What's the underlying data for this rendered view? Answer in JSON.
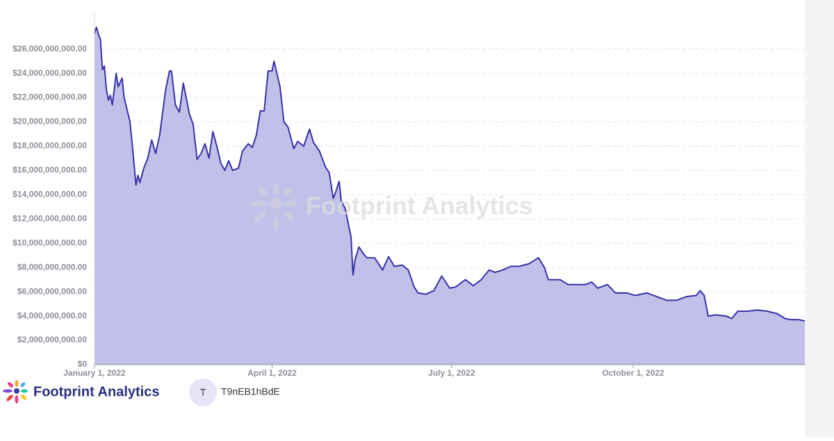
{
  "chart_data": {
    "type": "area",
    "color": "#3731a8",
    "fill": "#c2c0e8",
    "grid": true,
    "x": [
      "2022-01-01",
      "2022-01-02",
      "2022-01-03",
      "2022-01-04",
      "2022-01-05",
      "2022-01-06",
      "2022-01-07",
      "2022-01-08",
      "2022-01-09",
      "2022-01-10",
      "2022-01-12",
      "2022-01-13",
      "2022-01-15",
      "2022-01-16",
      "2022-01-19",
      "2022-01-21",
      "2022-01-22",
      "2022-01-23",
      "2022-01-24",
      "2022-01-26",
      "2022-01-28",
      "2022-01-30",
      "2022-02-01",
      "2022-02-03",
      "2022-02-06",
      "2022-02-08",
      "2022-02-09",
      "2022-02-11",
      "2022-02-13",
      "2022-02-15",
      "2022-02-18",
      "2022-02-20",
      "2022-02-22",
      "2022-02-24",
      "2022-02-26",
      "2022-02-28",
      "2022-03-02",
      "2022-03-04",
      "2022-03-06",
      "2022-03-08",
      "2022-03-10",
      "2022-03-12",
      "2022-03-15",
      "2022-03-17",
      "2022-03-20",
      "2022-03-22",
      "2022-03-24",
      "2022-03-26",
      "2022-03-28",
      "2022-03-30",
      "2022-04-01",
      "2022-04-02",
      "2022-04-05",
      "2022-04-07",
      "2022-04-09",
      "2022-04-12",
      "2022-04-14",
      "2022-04-17",
      "2022-04-20",
      "2022-04-22",
      "2022-04-25",
      "2022-04-28",
      "2022-04-30",
      "2022-05-02",
      "2022-05-03",
      "2022-05-05",
      "2022-05-06",
      "2022-05-08",
      "2022-05-11",
      "2022-05-12",
      "2022-05-13",
      "2022-05-15",
      "2022-05-17",
      "2022-05-19",
      "2022-05-23",
      "2022-05-27",
      "2022-05-30",
      "2022-06-02",
      "2022-06-06",
      "2022-06-09",
      "2022-06-12",
      "2022-06-14",
      "2022-06-18",
      "2022-06-22",
      "2022-06-26",
      "2022-06-30",
      "2022-07-03",
      "2022-07-08",
      "2022-07-12",
      "2022-07-16",
      "2022-07-20",
      "2022-07-23",
      "2022-07-27",
      "2022-07-31",
      "2022-08-04",
      "2022-08-09",
      "2022-08-14",
      "2022-08-17",
      "2022-08-19",
      "2022-08-25",
      "2022-08-29",
      "2022-09-02",
      "2022-09-07",
      "2022-09-10",
      "2022-09-13",
      "2022-09-18",
      "2022-09-22",
      "2022-09-28",
      "2022-10-02",
      "2022-10-08",
      "2022-10-13",
      "2022-10-18",
      "2022-10-23",
      "2022-10-28",
      "2022-11-02",
      "2022-11-04",
      "2022-11-06",
      "2022-11-08",
      "2022-11-12",
      "2022-11-17",
      "2022-11-20",
      "2022-11-23",
      "2022-11-28",
      "2022-12-03",
      "2022-12-08",
      "2022-12-13",
      "2022-12-17",
      "2022-12-20",
      "2022-12-24",
      "2022-12-27"
    ],
    "values": [
      27300000000,
      27800000000,
      27200000000,
      26800000000,
      24300000000,
      24600000000,
      22700000000,
      21800000000,
      22200000000,
      21400000000,
      24000000000,
      22900000000,
      23600000000,
      22000000000,
      20000000000,
      16600000000,
      14800000000,
      15600000000,
      15000000000,
      16200000000,
      17000000000,
      18500000000,
      17400000000,
      18900000000,
      22600000000,
      24200000000,
      24200000000,
      21400000000,
      20800000000,
      23200000000,
      20700000000,
      19800000000,
      16900000000,
      17400000000,
      18200000000,
      17000000000,
      19200000000,
      18000000000,
      16600000000,
      16000000000,
      16800000000,
      16000000000,
      16200000000,
      17600000000,
      18200000000,
      17900000000,
      18900000000,
      20900000000,
      20900000000,
      24200000000,
      24200000000,
      25000000000,
      22900000000,
      20000000000,
      19600000000,
      17800000000,
      18400000000,
      18000000000,
      19400000000,
      18300000000,
      17600000000,
      16300000000,
      15800000000,
      13700000000,
      14100000000,
      15100000000,
      13500000000,
      12900000000,
      10500000000,
      7400000000,
      8600000000,
      9700000000,
      9200000000,
      8800000000,
      8800000000,
      7800000000,
      8900000000,
      8100000000,
      8200000000,
      7800000000,
      6400000000,
      5900000000,
      5800000000,
      6100000000,
      7300000000,
      6300000000,
      6400000000,
      7000000000,
      6500000000,
      7000000000,
      7800000000,
      7600000000,
      7800000000,
      8100000000,
      8100000000,
      8300000000,
      8800000000,
      8000000000,
      7000000000,
      7000000000,
      6600000000,
      6600000000,
      6600000000,
      6800000000,
      6300000000,
      6600000000,
      5900000000,
      5900000000,
      5700000000,
      5900000000,
      5600000000,
      5300000000,
      5300000000,
      5600000000,
      5700000000,
      6100000000,
      5700000000,
      4000000000,
      4100000000,
      4000000000,
      3800000000,
      4400000000,
      4400000000,
      4500000000,
      4400000000,
      4200000000,
      3800000000,
      3700000000,
      3700000000,
      3600000000
    ],
    "xlim": [
      "2022-01-01",
      "2022-12-27"
    ],
    "xticks": [
      {
        "value": "2022-01-01",
        "label": "January 1, 2022"
      },
      {
        "value": "2022-04-01",
        "label": "April 1, 2022"
      },
      {
        "value": "2022-07-01",
        "label": "July 1, 2022"
      },
      {
        "value": "2022-10-01",
        "label": "October 1, 2022"
      }
    ],
    "ylim": [
      0,
      28900000000
    ],
    "yticks": [
      {
        "value": 0,
        "label": "$0"
      },
      {
        "value": 2000000000,
        "label": "$2,000,000,000.00"
      },
      {
        "value": 4000000000,
        "label": "$4,000,000,000.00"
      },
      {
        "value": 6000000000,
        "label": "$6,000,000,000.00"
      },
      {
        "value": 8000000000,
        "label": "$8,000,000,000.00"
      },
      {
        "value": 10000000000,
        "label": "$10,000,000,000.00"
      },
      {
        "value": 12000000000,
        "label": "$12,000,000,000.00"
      },
      {
        "value": 14000000000,
        "label": "$14,000,000,000.00"
      },
      {
        "value": 16000000000,
        "label": "$16,000,000,000.00"
      },
      {
        "value": 18000000000,
        "label": "$18,000,000,000.00"
      },
      {
        "value": 20000000000,
        "label": "$20,000,000,000.00"
      },
      {
        "value": 22000000000,
        "label": "$22,000,000,000.00"
      },
      {
        "value": 24000000000,
        "label": "$24,000,000,000.00"
      },
      {
        "value": 26000000000,
        "label": "$26,000,000,000.00"
      }
    ]
  },
  "watermark": "Footprint Analytics",
  "footer": {
    "brand": "Footprint Analytics",
    "avatar": "T",
    "user": "T9nEB1hBdE"
  }
}
